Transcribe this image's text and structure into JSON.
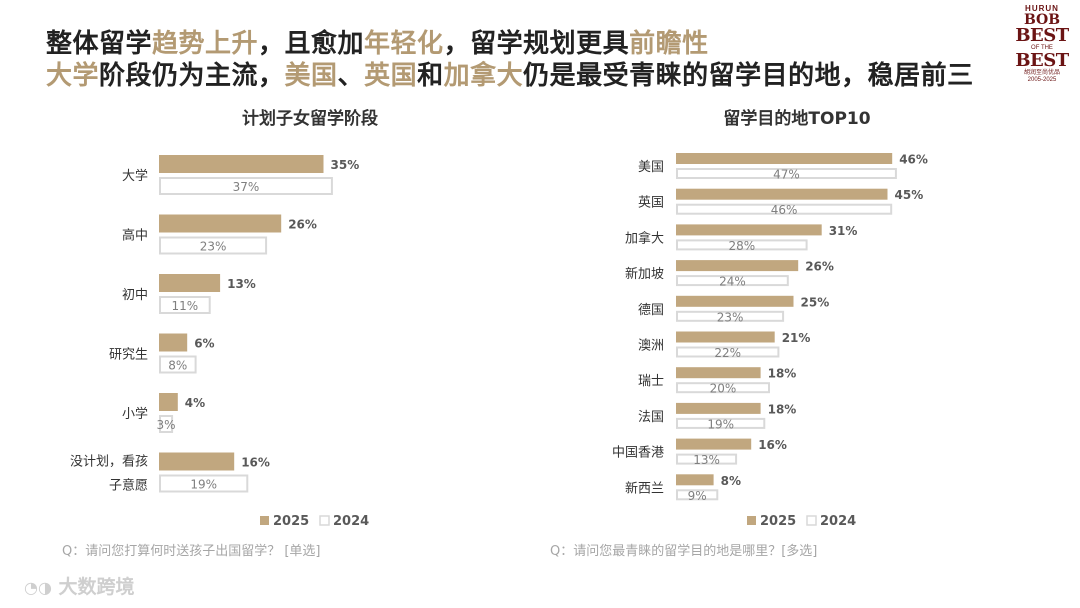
{
  "headline": {
    "line1": [
      {
        "text": "整体留学",
        "hl": false
      },
      {
        "text": "趋势上升",
        "hl": true
      },
      {
        "text": "，且愈加",
        "hl": false
      },
      {
        "text": "年轻化",
        "hl": true
      },
      {
        "text": "，留学规划更具",
        "hl": false
      },
      {
        "text": "前瞻性",
        "hl": true
      }
    ],
    "line2": [
      {
        "text": "大学",
        "hl": true
      },
      {
        "text": "阶段仍为主流，",
        "hl": false
      },
      {
        "text": "美国",
        "hl": true
      },
      {
        "text": "、",
        "hl": false
      },
      {
        "text": "英国",
        "hl": true
      },
      {
        "text": "和",
        "hl": false
      },
      {
        "text": "加拿大",
        "hl": true
      },
      {
        "text": "仍是最受青睐的留学目的地，稳居前三",
        "hl": false
      }
    ]
  },
  "logo": {
    "line1": "HURUN",
    "line2": "BOB",
    "line3a": "BEST",
    "line3b": "OF THE",
    "line3c": "BEST",
    "line4": "胡润至尚优品",
    "line5": "2005-2025"
  },
  "colors": {
    "accent": "#b39a73",
    "bar2025": "#c1a77f",
    "bar2024_border": "#d9d9d9",
    "question": "#a6a6a6"
  },
  "chart_data": [
    {
      "type": "bar",
      "orientation": "horizontal",
      "title": "计划子女留学阶段",
      "categories": [
        "大学",
        "高中",
        "初中",
        "研究生",
        "小学",
        "没计划，看孩子意愿"
      ],
      "category_lines": [
        [
          "大学"
        ],
        [
          "高中"
        ],
        [
          "初中"
        ],
        [
          "研究生"
        ],
        [
          "小学"
        ],
        [
          "没计划，看孩",
          "子意愿"
        ]
      ],
      "series": [
        {
          "name": "2025",
          "values": [
            35,
            26,
            13,
            6,
            4,
            16
          ],
          "labels": [
            "35%",
            "26%",
            "13%",
            "6%",
            "4%",
            "16%"
          ]
        },
        {
          "name": "2024",
          "values": [
            37,
            23,
            11,
            8,
            3,
            19
          ],
          "labels": [
            "37%",
            "23%",
            "11%",
            "8%",
            "3%",
            "19%"
          ]
        }
      ],
      "legend": [
        "2025",
        "2024"
      ],
      "question": "Q：请问您打算何时送孩子出国留学？ [单选]",
      "xlim": [
        0,
        100
      ]
    },
    {
      "type": "bar",
      "orientation": "horizontal",
      "title": "留学目的地TOP10",
      "categories": [
        "美国",
        "英国",
        "加拿大",
        "新加坡",
        "德国",
        "澳洲",
        "瑞士",
        "法国",
        "中国香港",
        "新西兰"
      ],
      "category_lines": [
        [
          "美国"
        ],
        [
          "英国"
        ],
        [
          "加拿大"
        ],
        [
          "新加坡"
        ],
        [
          "德国"
        ],
        [
          "澳洲"
        ],
        [
          "瑞士"
        ],
        [
          "法国"
        ],
        [
          "中国香港"
        ],
        [
          "新西兰"
        ]
      ],
      "series": [
        {
          "name": "2025",
          "values": [
            46,
            45,
            31,
            26,
            25,
            21,
            18,
            18,
            16,
            8
          ],
          "labels": [
            "46%",
            "45%",
            "31%",
            "26%",
            "25%",
            "21%",
            "18%",
            "18%",
            "16%",
            "8%"
          ]
        },
        {
          "name": "2024",
          "values": [
            47,
            46,
            28,
            24,
            23,
            22,
            20,
            19,
            13,
            9
          ],
          "labels": [
            "47%",
            "46%",
            "28%",
            "24%",
            "23%",
            "22%",
            "20%",
            "19%",
            "13%",
            "9%"
          ]
        }
      ],
      "legend": [
        "2025",
        "2024"
      ],
      "question": "Q：请问您最青睐的留学目的地是哪里？[多选]",
      "xlim": [
        0,
        100
      ]
    }
  ],
  "footer": {
    "brand": "大数跨境"
  }
}
